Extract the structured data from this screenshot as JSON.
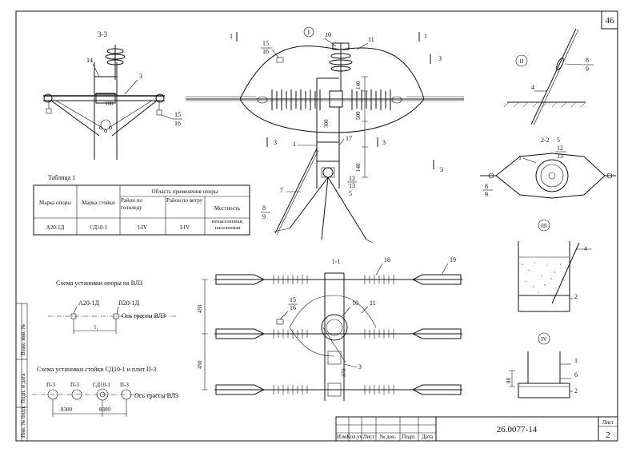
{
  "sheet": {
    "page_number": "46",
    "doc_code": "26.0077-14",
    "sheet_label": "Лист",
    "sheet_number": "2"
  },
  "title_block": {
    "cols": [
      "Изм.",
      "Кол.уч.",
      "Лист",
      "№ док.",
      "Подп.",
      "Дата"
    ]
  },
  "side_stamp": {
    "items": [
      "Инв. № подл.",
      "Подп. и дата",
      "Взам. инв. №"
    ]
  },
  "views": {
    "section_33": "3-3",
    "section_22": "2-2",
    "section_11": "1-1",
    "view_I": "I",
    "view_II": "II",
    "view_III": "III",
    "view_IV": "IV",
    "cut_mark_1": "1",
    "cut_mark_3": "3"
  },
  "callouts": {
    "n1": "1",
    "n2": "2",
    "n3": "3",
    "n4": "4",
    "n5": "5",
    "n6": "6",
    "n7": "7",
    "n8": "8",
    "n9": "9",
    "n10": "10",
    "n11": "11",
    "n12": "12",
    "n13": "13",
    "n14": "14",
    "n15": "15",
    "n16": "16",
    "n17": "17",
    "n18": "18",
    "n19": "19"
  },
  "dims": {
    "d100": "100",
    "d140": "140",
    "d500": "500",
    "d300": "300",
    "d450": "450",
    "d370": "370",
    "d80": "80",
    "d8300": "8300",
    "li": "l₁"
  },
  "table1": {
    "caption": "Таблица 1",
    "head_col1": "Марка опоры",
    "head_col2": "Марка стойки",
    "head_group": "Область применения опоры",
    "sub1": "Район по гололеду",
    "sub2": "Район по ветру",
    "sub3": "Местность",
    "rows": [
      {
        "c1": "А20-1Д",
        "c2": "СД10-1",
        "c3": "I-IV",
        "c4": "I-IV",
        "c5": "ненаселенная, населенная"
      }
    ]
  },
  "scheme1": {
    "title": "Схема установки опоры на ВЛЗ",
    "label_a": "А20-1Д",
    "label_p": "П20-1Д",
    "axis": "Ось трассы ВЛЗ"
  },
  "scheme2": {
    "title": "Схема установки стойки СД10-1 и плит П-3",
    "p3": "П-3",
    "sd": "СД10-1",
    "axis": "Ось трассы ВЛЗ"
  }
}
